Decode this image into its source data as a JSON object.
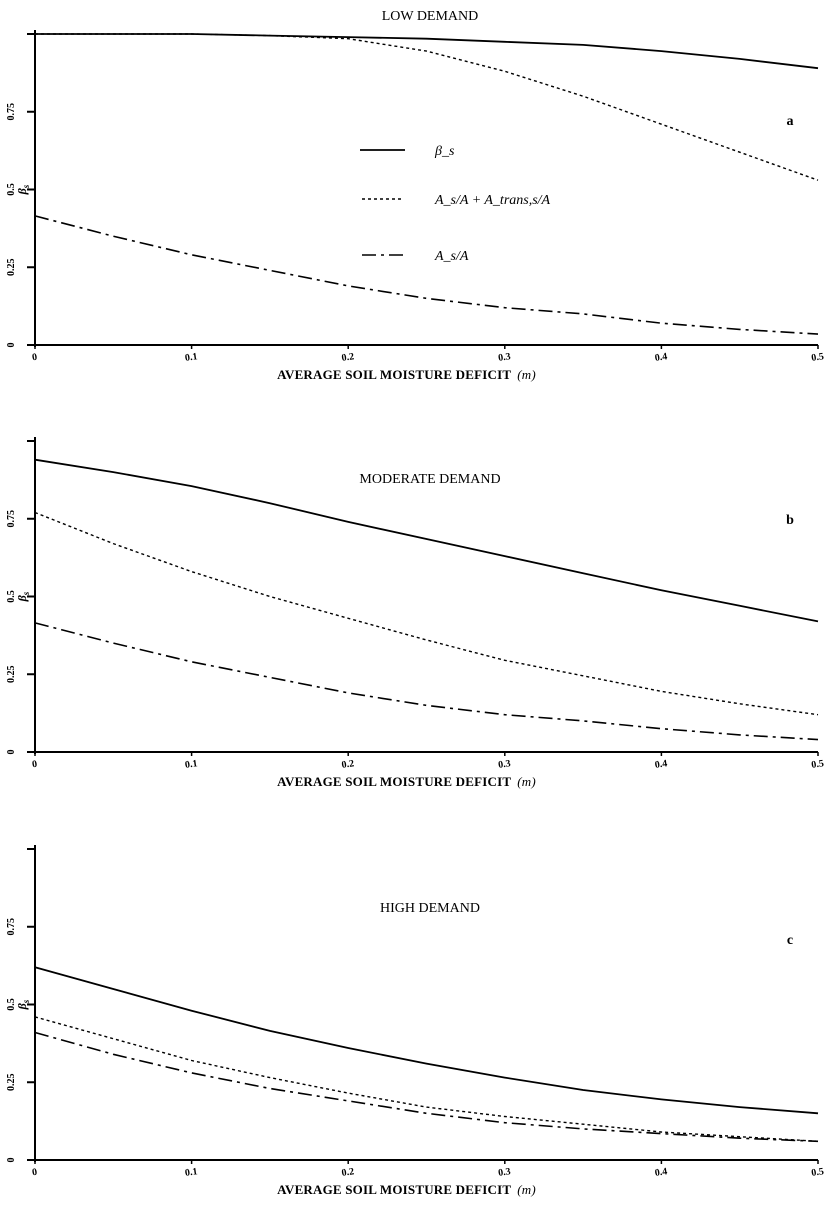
{
  "chart_data": [
    {
      "type": "line",
      "panel_letter": "a",
      "title": "LOW DEMAND",
      "xlabel": "AVERAGE SOIL MOISTURE DEFICIT",
      "xlabel_unit": "(m)",
      "ylabel": "β",
      "ylabel_sub": "s",
      "xlim": [
        0,
        0.5
      ],
      "ylim": [
        0,
        1
      ],
      "x_ticks": [
        "0",
        "0.1",
        "0.2",
        "0.3",
        "0.4",
        "0.5"
      ],
      "y_ticks": [
        "0",
        "0.25",
        "0.5",
        "0.75"
      ],
      "legend": {
        "entries": [
          {
            "series": 0,
            "label": "β_s"
          },
          {
            "series": 1,
            "label": "A_s/A + A_trans,s/A"
          },
          {
            "series": 2,
            "label": "A_s/A"
          }
        ]
      },
      "x": [
        0,
        0.05,
        0.1,
        0.15,
        0.2,
        0.25,
        0.3,
        0.35,
        0.4,
        0.45,
        0.5
      ],
      "series": [
        {
          "style": "solid",
          "values": [
            1.0,
            1.0,
            1.0,
            0.995,
            0.99,
            0.985,
            0.975,
            0.965,
            0.945,
            0.92,
            0.89
          ]
        },
        {
          "style": "dotted",
          "values": [
            1.0,
            1.0,
            1.0,
            0.995,
            0.985,
            0.945,
            0.88,
            0.8,
            0.71,
            0.62,
            0.53
          ]
        },
        {
          "style": "dashdot",
          "values": [
            0.415,
            0.35,
            0.29,
            0.24,
            0.19,
            0.15,
            0.12,
            0.1,
            0.07,
            0.05,
            0.035
          ]
        }
      ]
    },
    {
      "type": "line",
      "panel_letter": "b",
      "title": "MODERATE DEMAND",
      "xlabel": "AVERAGE SOIL MOISTURE DEFICIT",
      "xlabel_unit": "(m)",
      "ylabel": "β",
      "ylabel_sub": "s",
      "xlim": [
        0,
        0.5
      ],
      "ylim": [
        0,
        1
      ],
      "x_ticks": [
        "0",
        "0.1",
        "0.2",
        "0.3",
        "0.4",
        "0.5"
      ],
      "y_ticks": [
        "0",
        "0.25",
        "0.5",
        "0.75"
      ],
      "x": [
        0,
        0.05,
        0.1,
        0.15,
        0.2,
        0.25,
        0.3,
        0.35,
        0.4,
        0.45,
        0.5
      ],
      "series": [
        {
          "style": "solid",
          "values": [
            0.94,
            0.9,
            0.855,
            0.8,
            0.74,
            0.685,
            0.63,
            0.575,
            0.52,
            0.47,
            0.42
          ]
        },
        {
          "style": "dotted",
          "values": [
            0.77,
            0.67,
            0.58,
            0.5,
            0.43,
            0.36,
            0.295,
            0.245,
            0.195,
            0.155,
            0.12
          ]
        },
        {
          "style": "dashdot",
          "values": [
            0.415,
            0.35,
            0.29,
            0.24,
            0.19,
            0.15,
            0.12,
            0.1,
            0.075,
            0.055,
            0.04
          ]
        }
      ]
    },
    {
      "type": "line",
      "panel_letter": "c",
      "title": "HIGH DEMAND",
      "xlabel": "AVERAGE SOIL MOISTURE DEFICIT",
      "xlabel_unit": "(m)",
      "ylabel": "β",
      "ylabel_sub": "s",
      "xlim": [
        0,
        0.5
      ],
      "ylim": [
        0,
        1
      ],
      "x_ticks": [
        "0",
        "0.1",
        "0.2",
        "0.3",
        "0.4",
        "0.5"
      ],
      "y_ticks": [
        "0",
        "0.25",
        "0.5",
        "0.75"
      ],
      "x": [
        0,
        0.05,
        0.1,
        0.15,
        0.2,
        0.25,
        0.3,
        0.35,
        0.4,
        0.45,
        0.5
      ],
      "series": [
        {
          "style": "solid",
          "values": [
            0.62,
            0.55,
            0.48,
            0.415,
            0.36,
            0.31,
            0.265,
            0.225,
            0.195,
            0.17,
            0.15
          ]
        },
        {
          "style": "dotted",
          "values": [
            0.46,
            0.39,
            0.32,
            0.265,
            0.215,
            0.17,
            0.14,
            0.115,
            0.09,
            0.075,
            0.06
          ]
        },
        {
          "style": "dashdot",
          "values": [
            0.41,
            0.34,
            0.28,
            0.23,
            0.19,
            0.15,
            0.12,
            0.1,
            0.085,
            0.07,
            0.06
          ]
        }
      ]
    }
  ]
}
